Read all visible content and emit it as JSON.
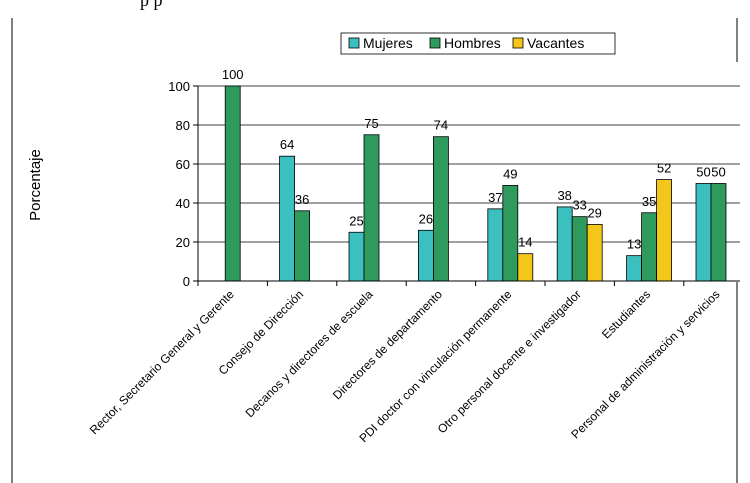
{
  "clipped_top_text": "p                                                                                           p",
  "chart_data": {
    "type": "bar",
    "title": "",
    "xlabel": "",
    "ylabel": "Porcentaje",
    "ylim": [
      0,
      100
    ],
    "yticks": [
      0,
      20,
      40,
      60,
      80,
      100
    ],
    "grid": true,
    "legend_position": "top",
    "categories": [
      "Rector, Secretario General y Gerente",
      "Consejo de Dirección",
      "Decanos y directores de escuela",
      "Directores de departamento",
      "PDI doctor con vinculación permanente",
      "Otro personal docente e investigador",
      "Estudiantes",
      "Personal de administración y servicios"
    ],
    "series": [
      {
        "name": "Mujeres",
        "color": "#3CBFBF",
        "values": [
          null,
          64,
          25,
          26,
          37,
          38,
          13,
          50
        ]
      },
      {
        "name": "Hombres",
        "color": "#2E9A5E",
        "values": [
          100,
          36,
          75,
          74,
          49,
          33,
          35,
          50
        ]
      },
      {
        "name": "Vacantes",
        "color": "#F5C61A",
        "values": [
          null,
          null,
          null,
          null,
          14,
          29,
          52,
          null
        ]
      }
    ]
  }
}
